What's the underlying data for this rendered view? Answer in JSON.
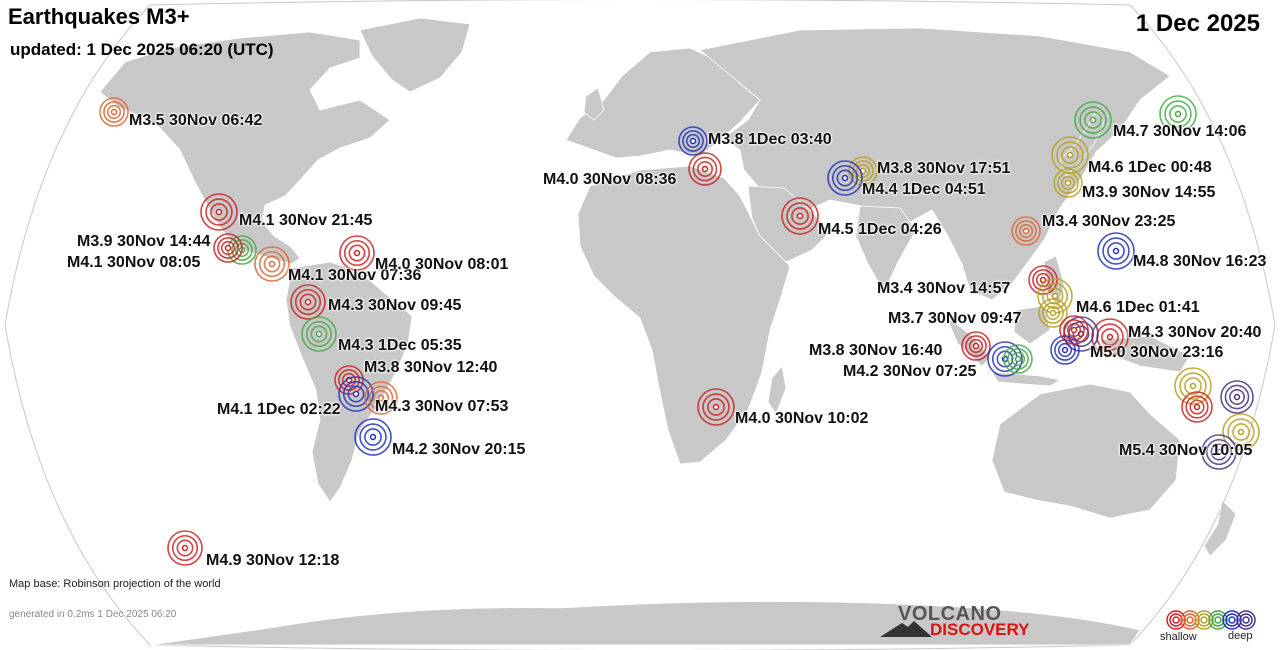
{
  "header": {
    "title": "Earthquakes M3+",
    "updated": "updated:  1 Dec 2025 06:20 (UTC)",
    "date": "1 Dec 2025"
  },
  "footer": {
    "map_base": "Map base: Robinson projection of the world",
    "generated": "generated in 0.2ms  1 Dec 2025 06:20"
  },
  "logo": {
    "line1": "VOLCANO",
    "line2": "DISCOVERY"
  },
  "legend": {
    "shallow": "shallow",
    "deep": "deep",
    "colors": [
      "#cc2222",
      "#dd6633",
      "#b8a020",
      "#44aa44",
      "#2233bb",
      "#443388"
    ]
  },
  "colors": {
    "land": "#c8c8c8",
    "ocean": "#ffffff",
    "red": "#cc2222",
    "orange": "#dd6633",
    "olive": "#b8a020",
    "green": "#44aa44",
    "blue": "#2233bb",
    "purple": "#443388"
  },
  "quakes": [
    {
      "label": "M3.5 30Nov 06:42",
      "depth_color": "orange"
    },
    {
      "label": "M4.1 30Nov 21:45",
      "depth_color": "red"
    },
    {
      "label": "M3.9 30Nov 14:44",
      "depth_color": "green"
    },
    {
      "label": "M4.1 30Nov 08:05",
      "depth_color": "red"
    },
    {
      "label": "M4.1 30Nov 07:36",
      "depth_color": "orange"
    },
    {
      "label": "M4.0 30Nov 08:01",
      "depth_color": "red"
    },
    {
      "label": "M4.3 30Nov 09:45",
      "depth_color": "red"
    },
    {
      "label": "M4.3  1Dec 05:35",
      "depth_color": "green"
    },
    {
      "label": "M3.8 30Nov 12:40",
      "depth_color": "red"
    },
    {
      "label": "M4.1  1Dec 02:22",
      "depth_color": "blue"
    },
    {
      "label": "M4.3 30Nov 07:53",
      "depth_color": "orange"
    },
    {
      "label": "M4.2 30Nov 20:15",
      "depth_color": "blue"
    },
    {
      "label": "M4.9 30Nov 12:18",
      "depth_color": "red"
    },
    {
      "label": "M3.8  1Dec 03:40",
      "depth_color": "blue"
    },
    {
      "label": "M4.0 30Nov 08:36",
      "depth_color": "red"
    },
    {
      "label": "M3.8 30Nov 17:51",
      "depth_color": "olive"
    },
    {
      "label": "M4.4  1Dec 04:51",
      "depth_color": "blue"
    },
    {
      "label": "M4.5  1Dec 04:26",
      "depth_color": "red"
    },
    {
      "label": "M4.0 30Nov 10:02",
      "depth_color": "red"
    },
    {
      "label": "M4.7 30Nov 14:06",
      "depth_color": "green"
    },
    {
      "label": "M4.6  1Dec 00:48",
      "depth_color": "olive"
    },
    {
      "label": "M3.9 30Nov 14:55",
      "depth_color": "olive"
    },
    {
      "label": "M3.4 30Nov 23:25",
      "depth_color": "orange"
    },
    {
      "label": "M4.8 30Nov 16:23",
      "depth_color": "blue"
    },
    {
      "label": "M3.4 30Nov 14:57",
      "depth_color": "red"
    },
    {
      "label": "M4.6  1Dec 01:41",
      "depth_color": "olive"
    },
    {
      "label": "M3.7 30Nov 09:47",
      "depth_color": "olive"
    },
    {
      "label": "M4.3 30Nov 20:40",
      "depth_color": "red"
    },
    {
      "label": "M3.8 30Nov 16:40",
      "depth_color": "red"
    },
    {
      "label": "M5.0 30Nov 23:16",
      "depth_color": "purple"
    },
    {
      "label": "M4.2 30Nov 07:25",
      "depth_color": "blue"
    },
    {
      "label": "M5.4 30Nov 10:05",
      "depth_color": "olive"
    }
  ]
}
